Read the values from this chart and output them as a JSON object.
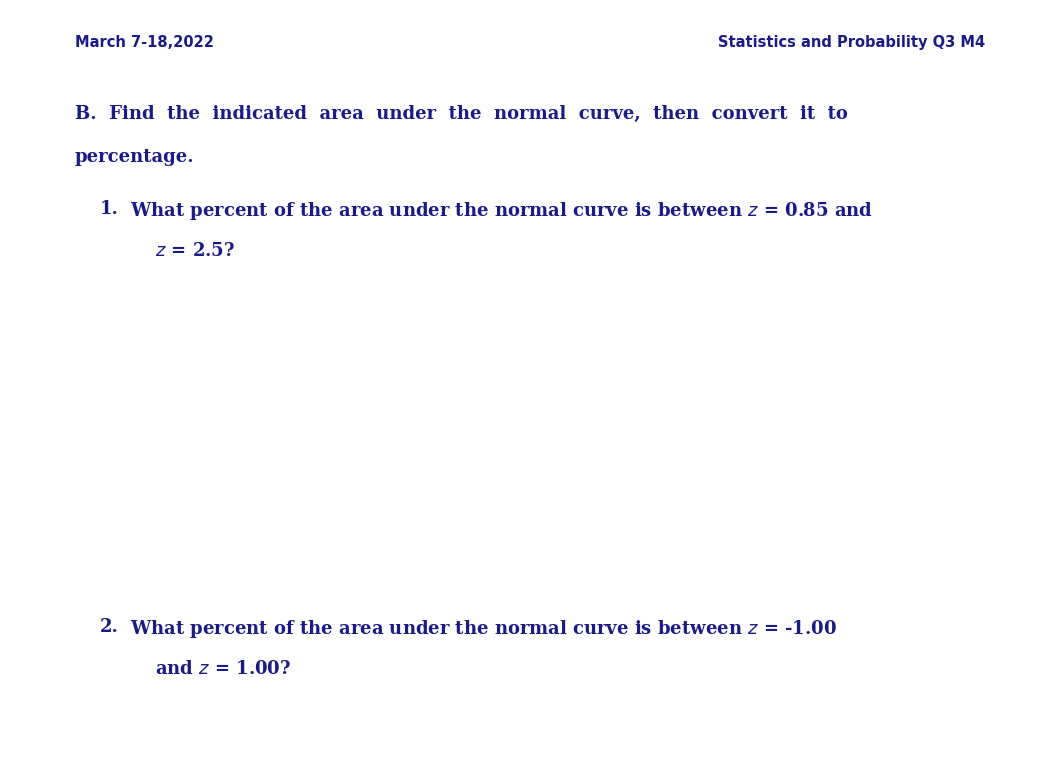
{
  "background_color": "#ffffff",
  "header_left": "March 7-18,2022",
  "header_right": "Statistics and Probability Q3 M4",
  "header_fontsize": 10.5,
  "header_color": "#1a1a8c",
  "section_b_line1": "B.  Find  the  indicated  area  under  the  normal  curve,  then  convert  it  to",
  "section_b_line2": "percentage.",
  "section_b_fontsize": 13.0,
  "section_b_color": "#1a1a8c",
  "q1_number": "1.",
  "q1_line1": "What percent of the area under the normal curve is between ",
  "q1_line1_z": "z",
  "q1_line1_rest": " = 0.85 and",
  "q1_line2_z": "z",
  "q1_line2_rest": " = 2.5?",
  "q1_fontsize": 13.0,
  "q1_color": "#1a1a8c",
  "q2_number": "2.",
  "q2_line1": "What percent of the area under the normal curve is between ",
  "q2_line1_z": "z",
  "q2_line1_rest": " = -1.00",
  "q2_line2": "and ",
  "q2_line2_z": "z",
  "q2_line2_rest": " = 1.00?",
  "q2_fontsize": 13.0,
  "q2_color": "#1a1a8c",
  "fig_width": 10.58,
  "fig_height": 7.68,
  "dpi": 100
}
